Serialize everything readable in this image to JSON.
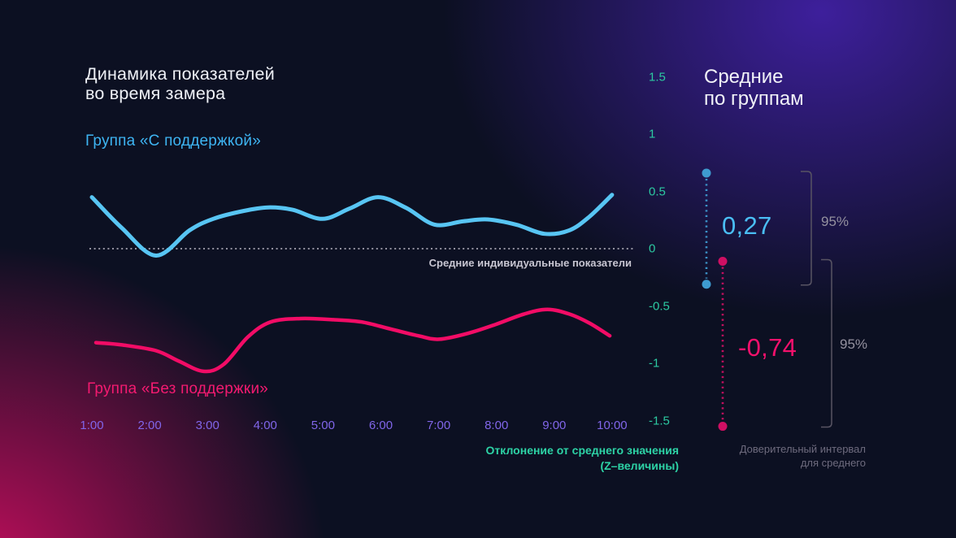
{
  "page": {
    "title_line1": "Динамика показателей",
    "title_line2": "во время замера"
  },
  "right_panel": {
    "heading_line1": "Средние",
    "heading_line2": "по группам",
    "caption_line1": "Доверительный интервал",
    "caption_line2": "для среднего"
  },
  "left_chart": {
    "zero_line_caption": "Средние индивидуальные показатели",
    "xaxis_caption_line1": "Отклонение от среднего значения",
    "xaxis_caption_line2": "(Z–величины)"
  },
  "colors": {
    "background_base": "#0c1022",
    "glow_purple": "#40209f",
    "glow_magenta": "#c80d5e",
    "support_curve": "#58c5f3",
    "support_dot": "#3e9bd0",
    "no_support_curve": "#f20c66",
    "no_support_dot": "#cf0f63",
    "teal_axis": "#2cc9a1",
    "purple_ticks": "#8166ea",
    "zero_line": "#a7a5b2",
    "bracket_gray": "#585463"
  },
  "chart_data": {
    "type": "line",
    "title": "Динамика показателей во время замера",
    "xlabel": "",
    "ylabel": "Отклонение от среднего значения (Z–величины)",
    "ylim": [
      -1.5,
      1.5
    ],
    "grid": false,
    "y_ticks": [
      "1.5",
      "1",
      "0.5",
      "0",
      "-0.5",
      "-1",
      "-1.5"
    ],
    "y_tick_values": [
      1.5,
      1,
      0.5,
      0,
      -0.5,
      -1,
      -1.5
    ],
    "x_ticks": [
      "1:00",
      "2:00",
      "3:00",
      "4:00",
      "5:00",
      "6:00",
      "7:00",
      "8:00",
      "9:00",
      "10:00"
    ],
    "reference_line": {
      "y": 0,
      "label": "Средние индивидуальные показатели"
    },
    "series": [
      {
        "name": "Группа «С поддержкой»",
        "color": "#58c5f3",
        "values_hourly": [
          0.45,
          -0.06,
          0.25,
          0.36,
          0.26,
          0.45,
          0.21,
          0.26,
          0.13,
          0.47
        ],
        "mean_label": "0,27",
        "mean_value": 0.27,
        "ci_confidence": "95%",
        "ci_upper": 0.66,
        "ci_lower": -0.31,
        "detail_points": [
          [
            1.0,
            0.45
          ],
          [
            1.52,
            0.18
          ],
          [
            2.11,
            -0.06
          ],
          [
            2.69,
            0.16
          ],
          [
            3.1,
            0.26
          ],
          [
            3.63,
            0.33
          ],
          [
            4.05,
            0.36
          ],
          [
            4.47,
            0.34
          ],
          [
            4.99,
            0.26
          ],
          [
            5.46,
            0.35
          ],
          [
            5.95,
            0.45
          ],
          [
            6.44,
            0.355
          ],
          [
            6.93,
            0.21
          ],
          [
            7.43,
            0.24
          ],
          [
            7.85,
            0.255
          ],
          [
            8.34,
            0.21
          ],
          [
            8.83,
            0.13
          ],
          [
            9.26,
            0.16
          ],
          [
            9.61,
            0.28
          ],
          [
            10.0,
            0.47
          ]
        ]
      },
      {
        "name": "Группа «Без поддержки»",
        "color": "#f20c66",
        "values_hourly": [
          -0.82,
          -0.89,
          -1.07,
          -0.65,
          -0.62,
          -0.68,
          -0.79,
          -0.67,
          -0.53,
          -0.76
        ],
        "mean_label": "-0,74",
        "mean_value": -0.74,
        "ci_confidence": "95%",
        "ci_upper": -0.11,
        "ci_lower": -1.55,
        "detail_points": [
          [
            1.07,
            -0.82
          ],
          [
            1.52,
            -0.84
          ],
          [
            2.11,
            -0.89
          ],
          [
            2.5,
            -0.98
          ],
          [
            2.93,
            -1.07
          ],
          [
            3.28,
            -1.01
          ],
          [
            3.7,
            -0.77
          ],
          [
            4.09,
            -0.64
          ],
          [
            4.61,
            -0.61
          ],
          [
            5.18,
            -0.62
          ],
          [
            5.67,
            -0.64
          ],
          [
            6.16,
            -0.7
          ],
          [
            6.65,
            -0.76
          ],
          [
            7.01,
            -0.79
          ],
          [
            7.5,
            -0.74
          ],
          [
            7.99,
            -0.66
          ],
          [
            8.48,
            -0.57
          ],
          [
            8.88,
            -0.53
          ],
          [
            9.26,
            -0.57
          ],
          [
            9.61,
            -0.65
          ],
          [
            9.96,
            -0.76
          ]
        ]
      }
    ]
  }
}
